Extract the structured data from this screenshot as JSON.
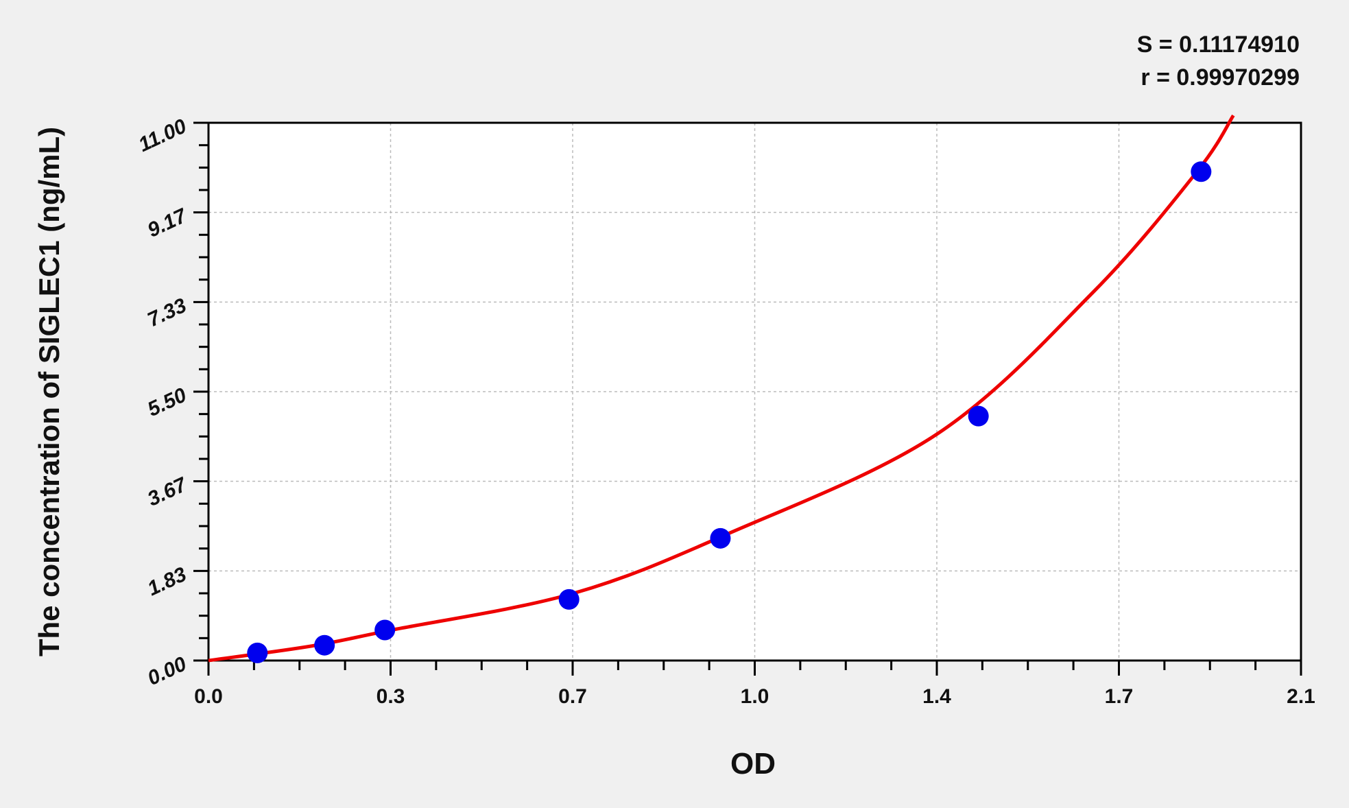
{
  "chart_data": {
    "type": "scatter",
    "title": "",
    "xlabel": "OD",
    "ylabel": "The concentration of SIGLEC1 (ng/mL)",
    "xlim": [
      0,
      2.1
    ],
    "ylim": [
      0,
      11
    ],
    "x_tick_labels": [
      "0.0",
      "0.3",
      "0.7",
      "1.0",
      "1.4",
      "1.7",
      "2.1"
    ],
    "y_tick_labels": [
      "0.00",
      "1.83",
      "3.67",
      "5.50",
      "7.33",
      "9.17",
      "11.00"
    ],
    "grid": true,
    "annotations": [
      "S = 0.11174910",
      "r = 0.99970299"
    ],
    "colors": {
      "points": "#0000ee",
      "fit": "#ee0000",
      "background": "#f0f0f0",
      "plot": "#ffffff"
    },
    "points": {
      "x": [
        0.094,
        0.223,
        0.339,
        0.693,
        0.984,
        1.48,
        1.908
      ],
      "y": [
        0.156,
        0.313,
        0.625,
        1.25,
        2.5,
        5.0,
        10.0
      ]
    },
    "fit_curve": {
      "x": [
        0,
        0.2,
        0.35,
        0.7,
        1.0,
        1.4,
        1.7,
        1.9,
        1.97
      ],
      "y": [
        0,
        0.3,
        0.62,
        1.37,
        2.6,
        4.63,
        7.53,
        10.0,
        11.15
      ]
    }
  }
}
